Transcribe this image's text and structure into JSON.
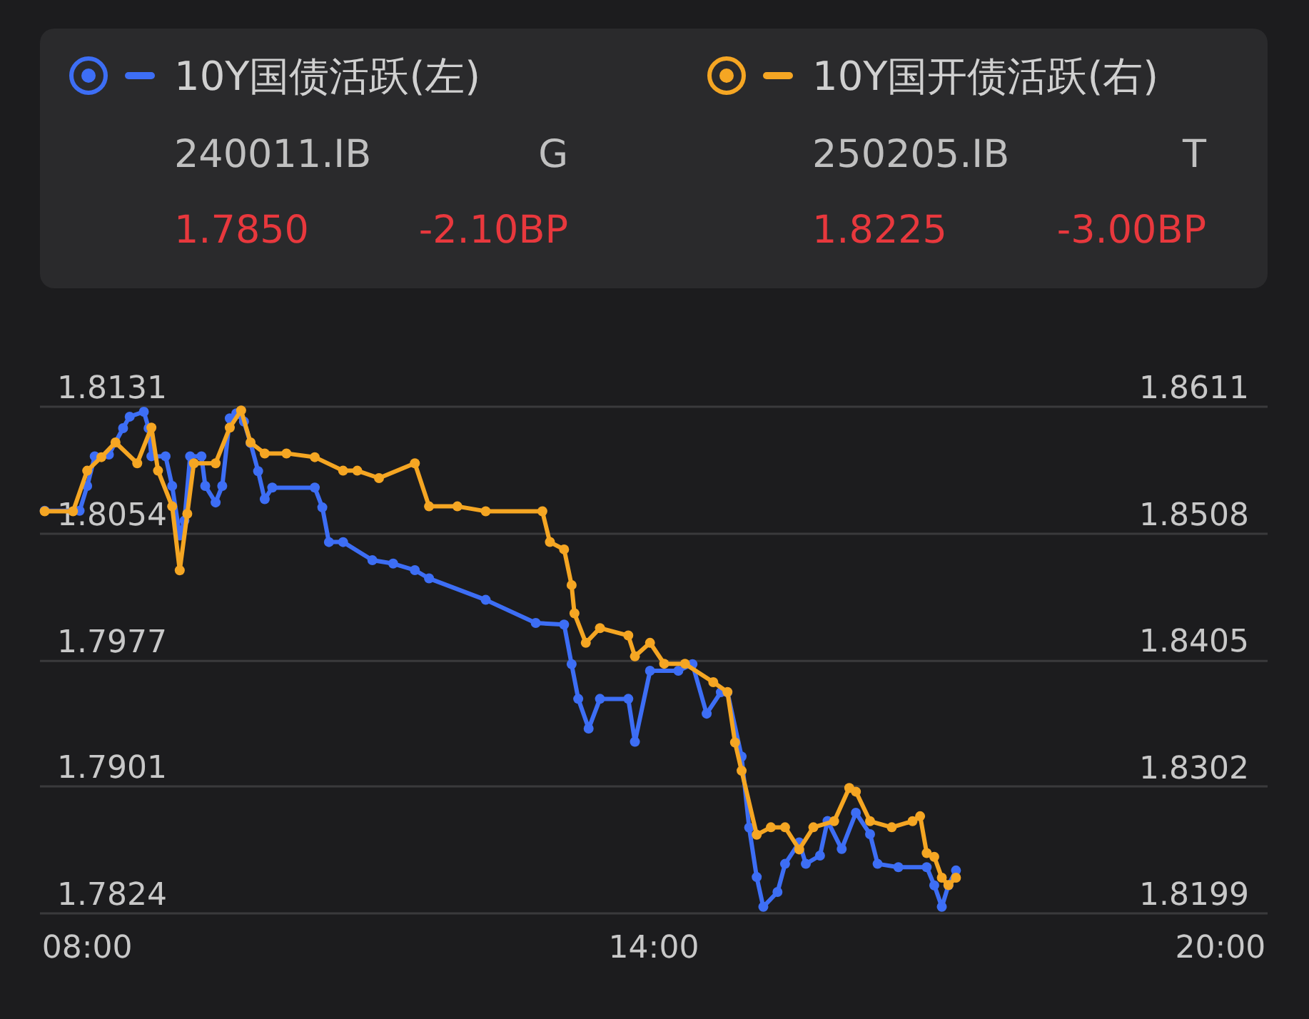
{
  "chart_data": {
    "type": "line",
    "xlim": [
      7.5,
      20.5
    ],
    "xticks": [
      {
        "value": 8,
        "label": "08:00"
      },
      {
        "value": 14,
        "label": "14:00"
      },
      {
        "value": 20,
        "label": "20:00"
      }
    ],
    "ylim": [
      1.7824,
      1.8131
    ],
    "yticks": [
      1.7824,
      1.7901,
      1.7977,
      1.8054,
      1.8131
    ],
    "y2lim": [
      1.8199,
      1.8611
    ],
    "y2ticks": [
      1.8199,
      1.8302,
      1.8405,
      1.8508,
      1.8611
    ],
    "grid": "y",
    "legend": "top",
    "marker": "circle",
    "line_style": "solid",
    "annotations": [
      "240011.IB",
      "G",
      "1.7850",
      "-2.10BP",
      "250205.IB",
      "T",
      "1.8225",
      "-3.00BP"
    ],
    "series": [
      {
        "name": "10Y国债活跃(左)",
        "color": "#3d6ef5",
        "axis": "y",
        "x": [
          7.55,
          7.92,
          8.0,
          8.08,
          8.23,
          8.38,
          8.45,
          8.6,
          8.65,
          8.68,
          8.83,
          8.9,
          8.98,
          9.03,
          9.09,
          9.21,
          9.25,
          9.36,
          9.43,
          9.51,
          9.58,
          9.66,
          9.73,
          9.81,
          9.88,
          9.96,
          10.41,
          10.49,
          10.56,
          10.71,
          11.02,
          11.24,
          11.47,
          11.62,
          12.22,
          12.75,
          13.05,
          13.13,
          13.2,
          13.31,
          13.43,
          13.73,
          13.8,
          13.96,
          14.26,
          14.41,
          14.56,
          14.71,
          14.78,
          14.93,
          15.01,
          15.09,
          15.16,
          15.31,
          15.39,
          15.54,
          15.61,
          15.76,
          15.84,
          15.99,
          16.14,
          16.29,
          16.37,
          16.59,
          16.89,
          16.97,
          17.05,
          17.12,
          17.2
        ],
        "values": [
          1.8068,
          1.8068,
          1.8083,
          1.8101,
          1.8102,
          1.8118,
          1.8125,
          1.8128,
          1.8118,
          1.8101,
          1.8101,
          1.8083,
          1.8053,
          1.8062,
          1.8101,
          1.8101,
          1.8083,
          1.8073,
          1.8083,
          1.8124,
          1.8127,
          1.8122,
          1.8109,
          1.8092,
          1.8075,
          1.8082,
          1.8082,
          1.807,
          1.8049,
          1.8049,
          1.8038,
          1.8036,
          1.8032,
          1.8027,
          1.8014,
          1.8,
          1.7999,
          1.7975,
          1.7954,
          1.7936,
          1.7954,
          1.7954,
          1.7928,
          1.7971,
          1.7971,
          1.7975,
          1.7945,
          1.7958,
          1.7958,
          1.7919,
          1.7876,
          1.7846,
          1.7828,
          1.7837,
          1.7854,
          1.7867,
          1.7854,
          1.7859,
          1.788,
          1.7863,
          1.7885,
          1.7872,
          1.7854,
          1.7852,
          1.7852,
          1.7841,
          1.7828,
          1.7841,
          1.785
        ]
      },
      {
        "name": "10Y国开债活跃(右)",
        "color": "#f5a623",
        "axis": "y2",
        "x": [
          7.55,
          7.85,
          8.0,
          8.15,
          8.3,
          8.53,
          8.68,
          8.75,
          8.9,
          8.98,
          9.06,
          9.13,
          9.36,
          9.51,
          9.63,
          9.73,
          9.88,
          10.11,
          10.41,
          10.71,
          10.86,
          11.09,
          11.47,
          11.62,
          11.92,
          12.22,
          12.82,
          12.9,
          13.05,
          13.13,
          13.16,
          13.28,
          13.43,
          13.73,
          13.8,
          13.96,
          14.11,
          14.33,
          14.63,
          14.78,
          14.86,
          14.93,
          15.09,
          15.24,
          15.39,
          15.54,
          15.69,
          15.91,
          16.07,
          16.14,
          16.29,
          16.52,
          16.74,
          16.82,
          16.89,
          16.97,
          17.05,
          17.12,
          17.2
        ],
        "values": [
          1.8526,
          1.8526,
          1.8559,
          1.857,
          1.8582,
          1.8565,
          1.8594,
          1.8559,
          1.853,
          1.8478,
          1.8524,
          1.8565,
          1.8565,
          1.8594,
          1.8608,
          1.8582,
          1.8573,
          1.8573,
          1.857,
          1.8559,
          1.8559,
          1.8553,
          1.8565,
          1.853,
          1.853,
          1.8526,
          1.8526,
          1.8501,
          1.8495,
          1.8466,
          1.8443,
          1.8419,
          1.8431,
          1.8425,
          1.8408,
          1.8419,
          1.8402,
          1.8402,
          1.8387,
          1.8379,
          1.8338,
          1.8315,
          1.8263,
          1.8269,
          1.8269,
          1.8251,
          1.8269,
          1.8274,
          1.8301,
          1.8298,
          1.8274,
          1.8269,
          1.8274,
          1.8278,
          1.8248,
          1.8245,
          1.8228,
          1.8222,
          1.8228
        ]
      }
    ]
  }
}
